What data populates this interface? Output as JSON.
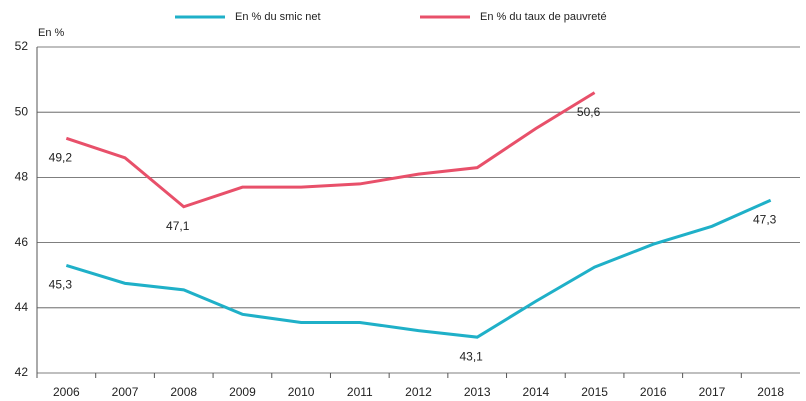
{
  "chart_data": {
    "type": "line",
    "y_label": "En %",
    "categories": [
      "2006",
      "2007",
      "2008",
      "2009",
      "2010",
      "2011",
      "2012",
      "2013",
      "2014",
      "2015",
      "2016",
      "2017",
      "2018"
    ],
    "series": [
      {
        "name": "En % du smic net",
        "color": "#1fb0c8",
        "values": [
          45.3,
          44.75,
          44.55,
          43.8,
          43.55,
          43.55,
          43.3,
          43.1,
          44.2,
          45.25,
          45.95,
          46.5,
          47.3
        ],
        "value_labels": [
          "45,3",
          null,
          null,
          null,
          null,
          null,
          null,
          "43,1",
          null,
          null,
          null,
          null,
          "47,3"
        ]
      },
      {
        "name": "En % du taux de pauvreté",
        "color": "#e8506a",
        "values": [
          49.2,
          48.6,
          47.1,
          47.7,
          47.7,
          47.8,
          48.1,
          48.3,
          49.5,
          50.6,
          null,
          null,
          null
        ],
        "value_labels": [
          "49,2",
          null,
          "47,1",
          null,
          null,
          null,
          null,
          null,
          null,
          "50,6",
          null,
          null,
          null
        ]
      }
    ],
    "ylim": [
      42,
      52
    ],
    "yticks": [
      42,
      44,
      46,
      48,
      50,
      52
    ],
    "grid": true
  }
}
